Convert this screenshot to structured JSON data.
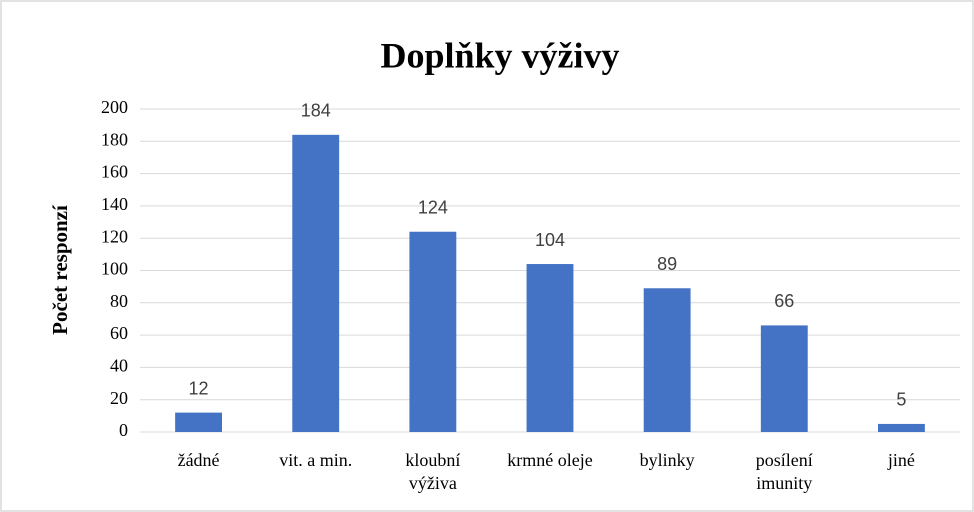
{
  "chart_data": {
    "type": "bar",
    "title": "Doplňky výživy",
    "y_label": "Počet responzí",
    "categories": [
      "žádné",
      "vit. a min.",
      "kloubní výživa",
      "krmné oleje",
      "bylinky",
      "posílení imunity",
      "jiné"
    ],
    "values": [
      12,
      184,
      124,
      104,
      89,
      66,
      5
    ],
    "color": "#4472c4",
    "ylim": [
      0,
      200
    ],
    "yticks": [
      0,
      20,
      40,
      60,
      80,
      100,
      120,
      140,
      160,
      180,
      200
    ],
    "grid": true
  }
}
